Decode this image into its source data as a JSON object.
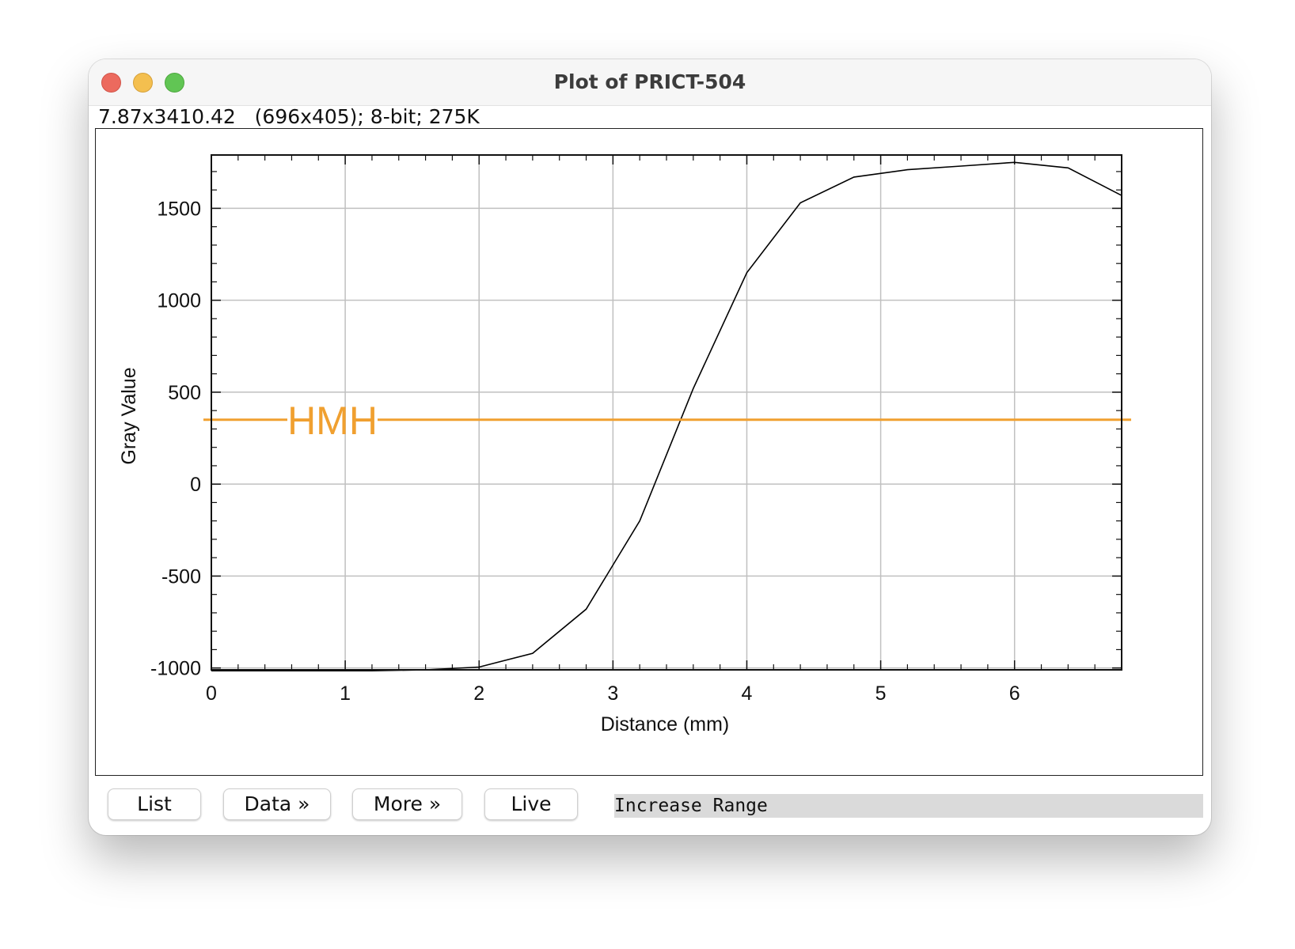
{
  "window": {
    "title": "Plot of PRICT-504",
    "info": "7.87x3410.42   (696x405); 8-bit; 275K"
  },
  "buttons": {
    "list": "List",
    "data": "Data »",
    "more": "More »",
    "live": "Live"
  },
  "status": {
    "text": "Increase Range"
  },
  "colors": {
    "hmh_line": "#f0a030",
    "profile_line": "#000000",
    "grid": "#c0c0c0"
  },
  "chart_data": {
    "type": "line",
    "xlabel": "Distance (mm)",
    "ylabel": "Gray Value",
    "xlim": [
      0,
      6.8
    ],
    "ylim": [
      -1010,
      1790
    ],
    "xticks": [
      0,
      1,
      2,
      3,
      4,
      5,
      6
    ],
    "yticks": [
      -1000,
      -500,
      0,
      500,
      1000,
      1500
    ],
    "grid": true,
    "series": [
      {
        "x": [
          0,
          0.4,
          0.8,
          1.2,
          1.6,
          2.0,
          2.4,
          2.8,
          3.2,
          3.6,
          4.0,
          4.4,
          4.8,
          5.2,
          5.6,
          6.0,
          6.4,
          6.8
        ],
        "y": [
          -1015,
          -1015,
          -1015,
          -1015,
          -1010,
          -995,
          -920,
          -680,
          -200,
          520,
          1150,
          1530,
          1670,
          1710,
          1730,
          1750,
          1720,
          1570
        ]
      }
    ],
    "annotations": [
      {
        "label": "HMH",
        "y": 350
      }
    ]
  }
}
